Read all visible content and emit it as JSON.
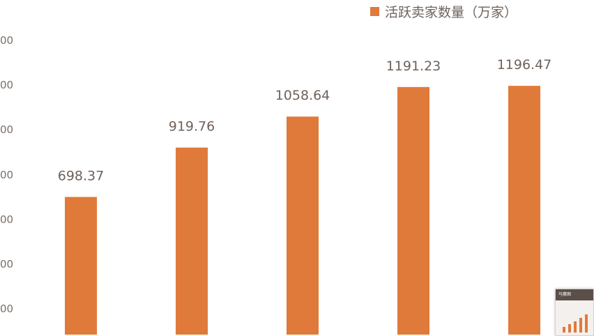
{
  "chart_data": {
    "type": "bar",
    "categories": [
      "",
      "",
      "",
      "",
      ""
    ],
    "series": [
      {
        "name": "活跃卖家数量（万家）",
        "values": [
          698.37,
          919.76,
          1058.64,
          1191.23,
          1196.47
        ]
      }
    ],
    "data_labels": [
      "698.37",
      "919.76",
      "1058.64",
      "1191.23",
      "1196.47"
    ],
    "y_ticks": [
      "00",
      "00",
      "00",
      "00",
      "00",
      "00",
      "00"
    ],
    "ylim": [
      0,
      1400
    ],
    "legend_position": "top-right",
    "grid": false,
    "bar_color": "#e07a3b"
  },
  "thumbnail": {
    "title": "马赛图",
    "bar_levels": [
      0.3,
      0.45,
      0.6,
      0.8,
      1.0
    ]
  }
}
